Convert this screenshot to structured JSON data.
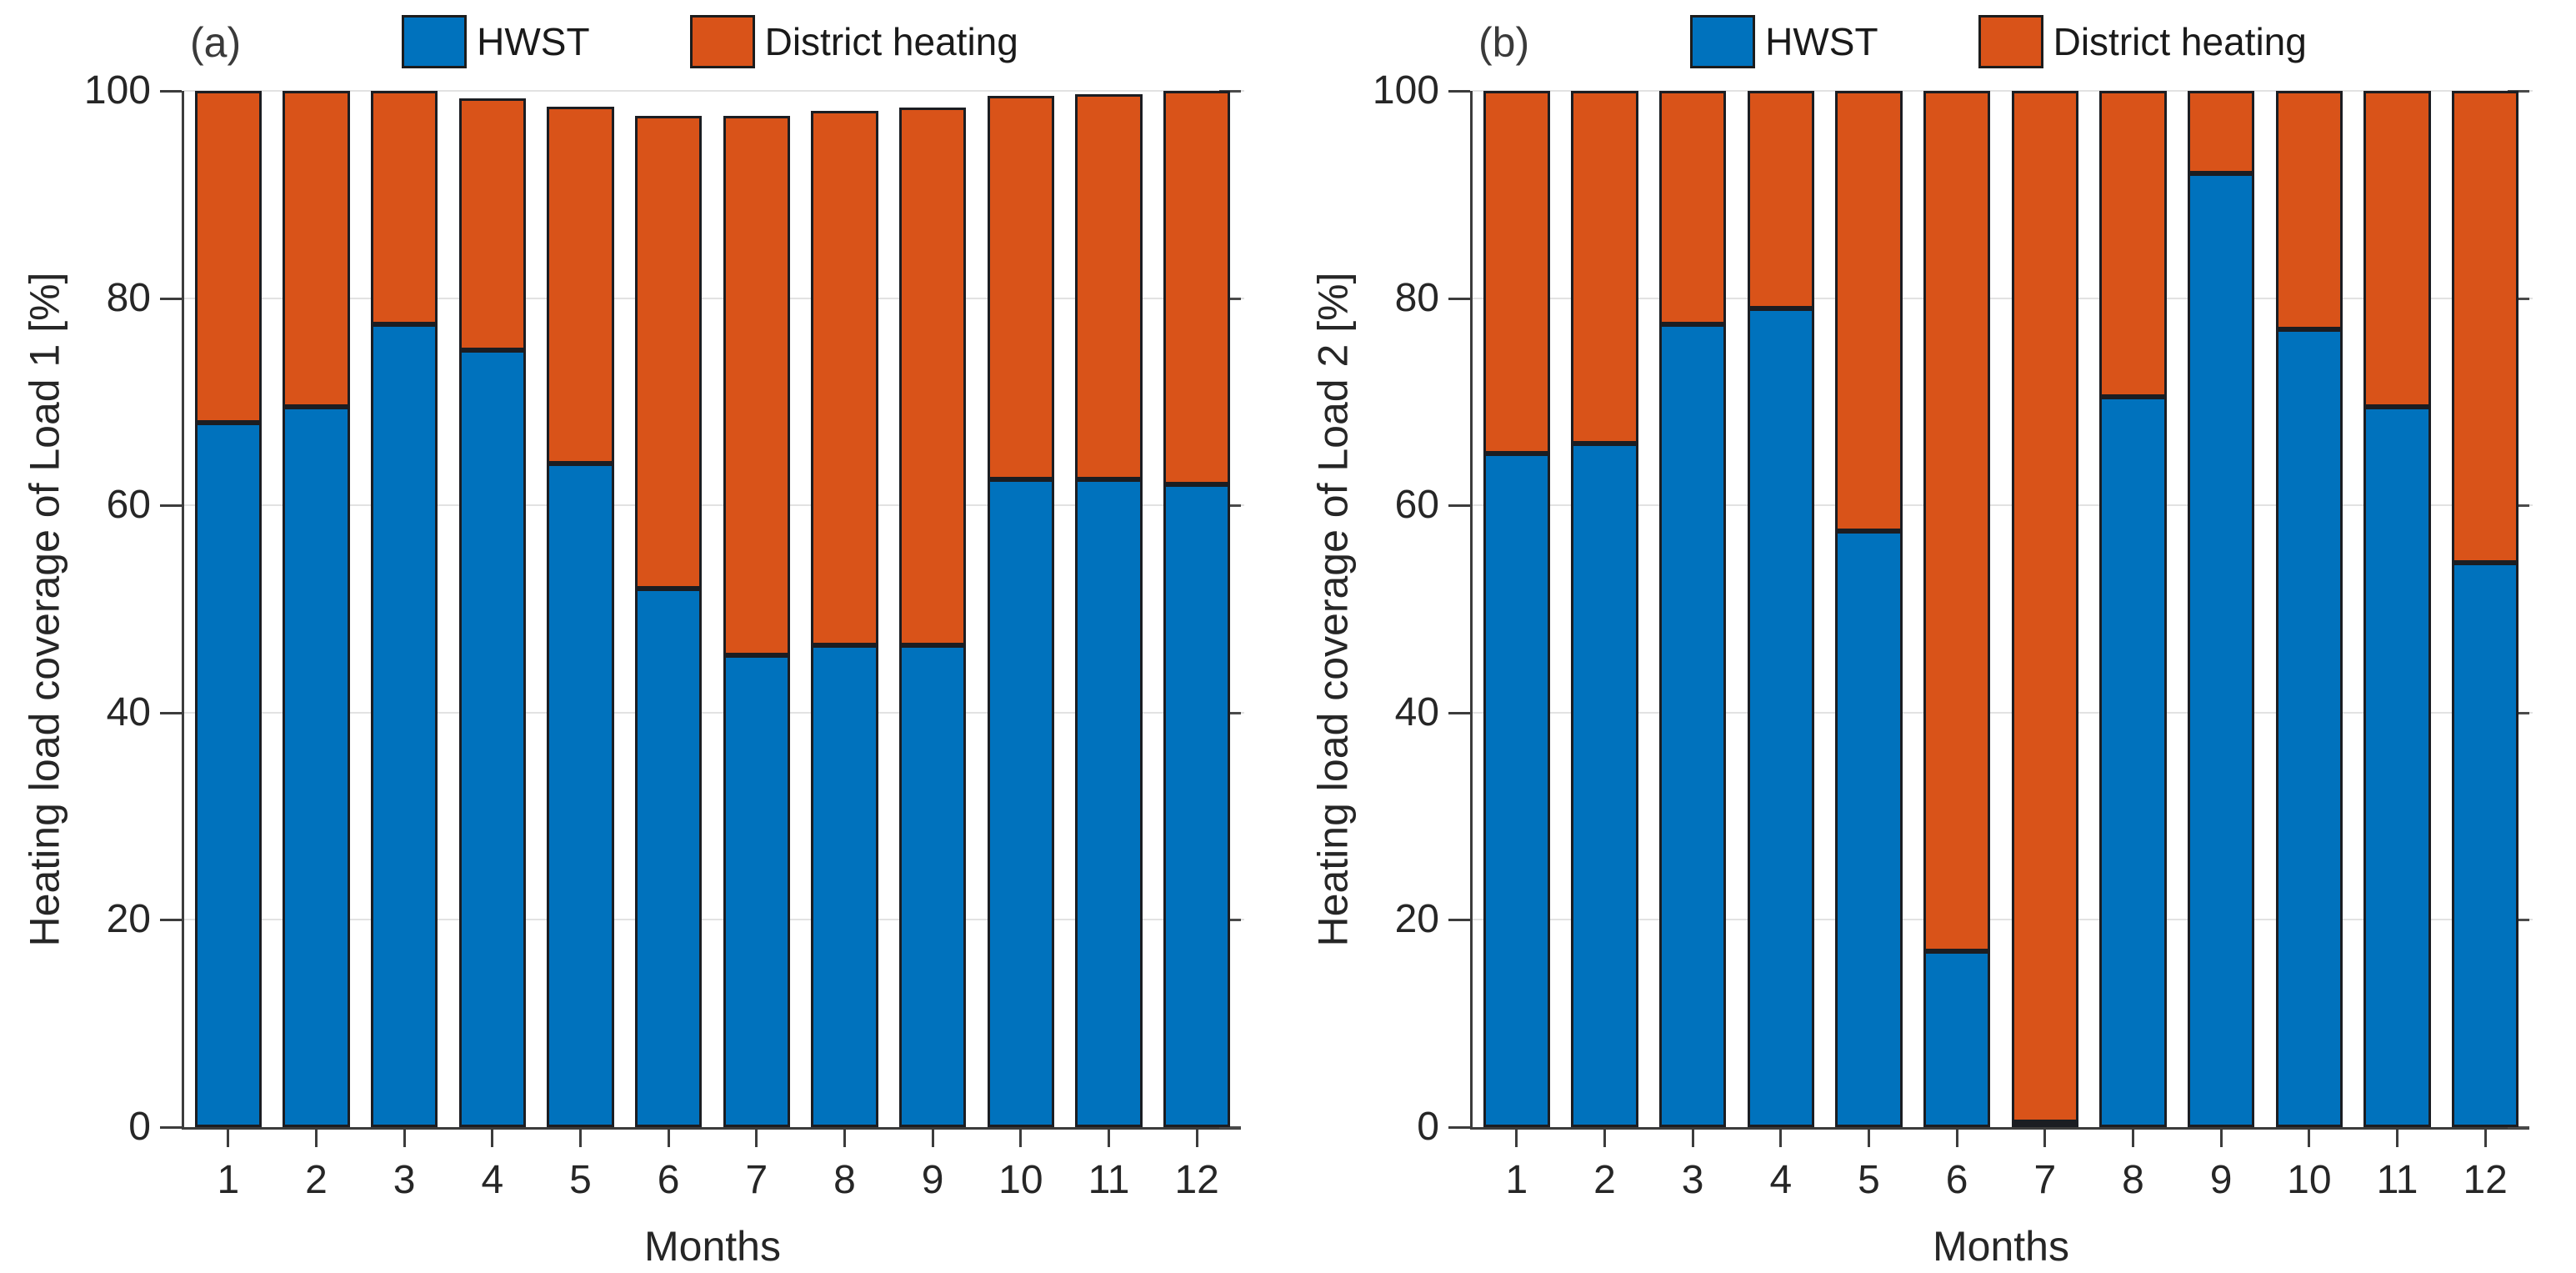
{
  "figure": {
    "background": "#ffffff",
    "axis_color": "#3c3c3c",
    "grid_color": "#e2e2e2",
    "bar_edge_color": "#1b1d22"
  },
  "chart_data": [
    {
      "type": "bar",
      "stacked": true,
      "title": "(a)",
      "categories": [
        "1",
        "2",
        "3",
        "4",
        "5",
        "6",
        "7",
        "8",
        "9",
        "10",
        "11",
        "12"
      ],
      "series": [
        {
          "name": "HWST",
          "color": "#0072BD",
          "values": [
            68,
            69.5,
            77.5,
            75,
            64,
            52,
            45.5,
            46.5,
            46.5,
            62.5,
            62.5,
            62
          ]
        },
        {
          "name": "District heating",
          "color": "#D95319",
          "values": [
            32,
            30.5,
            22.5,
            24.3,
            34.5,
            45.6,
            52.1,
            51.6,
            51.9,
            37,
            37.2,
            38
          ]
        }
      ],
      "bar_totals": [
        100,
        100,
        100,
        99.3,
        98.5,
        97.6,
        97.6,
        98.1,
        98.4,
        99.5,
        99.7,
        100
      ],
      "xlabel": "Months",
      "ylabel": "Heating load coverage of Load 1 [%]",
      "ylim": [
        0,
        100
      ],
      "y_ticks": [
        0,
        20,
        40,
        60,
        80,
        100
      ],
      "grid": "y",
      "legend_position": "top"
    },
    {
      "type": "bar",
      "stacked": true,
      "title": "(b)",
      "categories": [
        "1",
        "2",
        "3",
        "4",
        "5",
        "6",
        "7",
        "8",
        "9",
        "10",
        "11",
        "12"
      ],
      "series": [
        {
          "name": "HWST",
          "color": "#0072BD",
          "values": [
            65,
            66,
            77.5,
            79,
            57.5,
            17,
            0.5,
            70.5,
            92,
            77,
            69.5,
            54.5
          ]
        },
        {
          "name": "District heating",
          "color": "#D95319",
          "values": [
            35,
            34,
            22.5,
            21,
            42.5,
            83,
            99.5,
            29.5,
            8,
            23,
            30.5,
            45.5
          ]
        }
      ],
      "bar_totals": [
        100,
        100,
        100,
        100,
        100,
        100,
        100,
        100,
        100,
        100,
        100,
        100
      ],
      "xlabel": "Months",
      "ylabel": "Heating load coverage of Load 2 [%]",
      "ylim": [
        0,
        100
      ],
      "y_ticks": [
        0,
        20,
        40,
        60,
        80,
        100
      ],
      "grid": "y",
      "legend_position": "top"
    }
  ]
}
